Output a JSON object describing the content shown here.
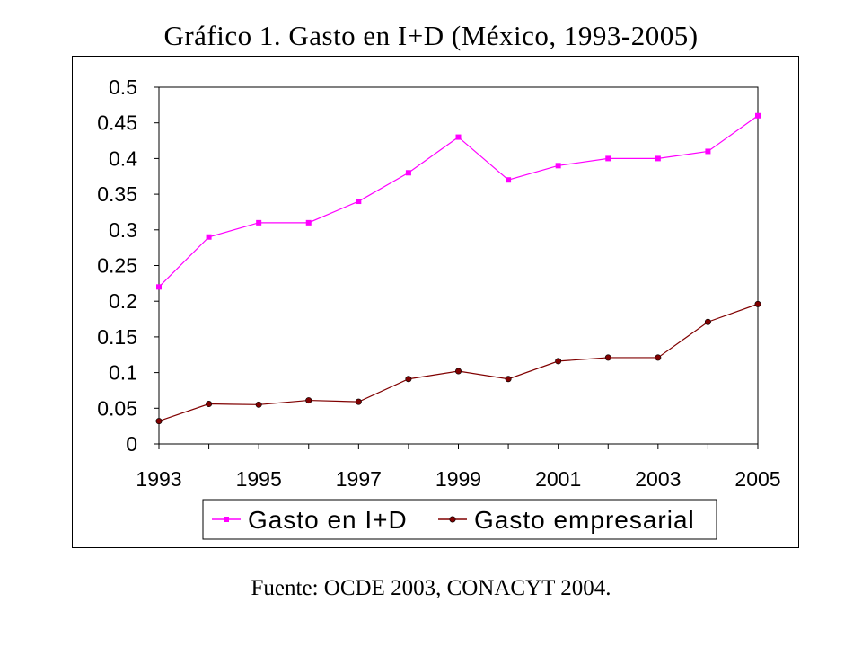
{
  "page": {
    "title": "Gráfico 1. Gasto en I+D (México, 1993-2005)",
    "source": "Fuente: OCDE 2003, CONACYT 2004."
  },
  "chart_data": {
    "type": "line",
    "title": "Gráfico 1. Gasto en I+D (México, 1993-2005)",
    "xlabel": "",
    "ylabel": "",
    "x": [
      1993,
      1994,
      1995,
      1996,
      1997,
      1998,
      1999,
      2000,
      2001,
      2002,
      2003,
      2004,
      2005
    ],
    "x_ticks": [
      "1993",
      "1995",
      "1997",
      "1999",
      "2001",
      "2003",
      "2005"
    ],
    "y_ticks": [
      "0",
      "0.05",
      "0.1",
      "0.15",
      "0.2",
      "0.25",
      "0.3",
      "0.35",
      "0.4",
      "0.45",
      "0.5"
    ],
    "ylim": [
      0,
      0.5
    ],
    "grid": false,
    "legend_position": "bottom",
    "series": [
      {
        "name": "Gasto en I+D",
        "color": "#ff00ff",
        "marker": "square",
        "values": [
          0.22,
          0.29,
          0.31,
          0.31,
          0.34,
          0.38,
          0.43,
          0.37,
          0.39,
          0.4,
          0.4,
          0.41,
          0.46
        ]
      },
      {
        "name": "Gasto empresarial",
        "color": "#800000",
        "marker": "circle",
        "values": [
          0.032,
          0.056,
          0.055,
          0.061,
          0.059,
          0.091,
          0.102,
          0.091,
          0.116,
          0.121,
          0.121,
          0.171,
          0.196
        ]
      }
    ]
  }
}
